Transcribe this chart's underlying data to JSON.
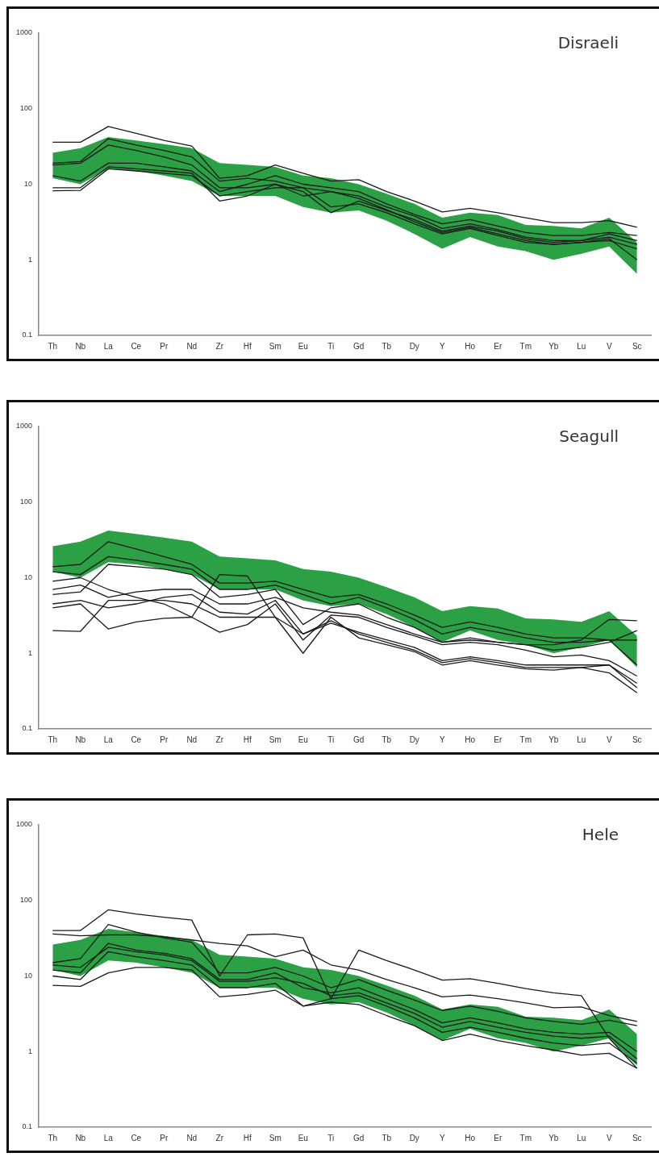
{
  "chart_data": [
    {
      "type": "line",
      "title": "Disraeli",
      "categories": [
        "Th",
        "Nb",
        "La",
        "Ce",
        "Pr",
        "Nd",
        "Zr",
        "Hf",
        "Sm",
        "Eu",
        "Ti",
        "Gd",
        "Tb",
        "Dy",
        "Y",
        "Ho",
        "Er",
        "Tm",
        "Yb",
        "Lu",
        "V",
        "Sc"
      ],
      "log": "y",
      "ylim": [
        0.1,
        1000
      ],
      "yticks": [
        0.1,
        1,
        10,
        100,
        1000
      ],
      "grid": false,
      "legend": false,
      "marker": "none",
      "line_style": "solid",
      "series": [
        {
          "color": "#2ca044",
          "values": [
            null,
            null,
            null,
            null,
            null,
            null,
            null,
            null,
            null,
            null,
            null,
            null,
            null,
            null,
            null,
            null,
            null,
            null,
            null,
            null,
            null,
            null
          ],
          "lower": [
            12,
            10,
            16,
            15,
            13,
            11,
            7,
            7,
            7,
            5,
            4.2,
            4.5,
            3.3,
            2.2,
            1.4,
            2,
            1.5,
            1.3,
            1,
            1.2,
            1.5,
            0.65
          ],
          "upper": [
            26,
            30,
            42,
            38,
            34,
            30,
            19,
            18,
            17,
            13,
            12,
            10,
            7.5,
            5.5,
            3.6,
            4.2,
            3.9,
            2.9,
            2.8,
            2.6,
            3.6,
            1.7
          ]
        },
        {
          "color": "#1a1a1a",
          "values": [
            36,
            36,
            58,
            47,
            38,
            32,
            12,
            13,
            18,
            14,
            11,
            11.5,
            8,
            6,
            4.3,
            4.8,
            4.2,
            3.6,
            3.1,
            3.1,
            3.3,
            2.7
          ]
        },
        {
          "color": "#1a1a1a",
          "values": [
            19,
            20,
            40,
            33,
            28,
            23,
            11,
            12,
            11,
            9,
            8,
            7,
            5,
            3.8,
            2.6,
            3,
            2.5,
            2,
            1.8,
            1.8,
            2,
            1.6
          ]
        },
        {
          "color": "#1a1a1a",
          "values": [
            18,
            19,
            33,
            28,
            23,
            18,
            9,
            9,
            10,
            8,
            4.2,
            6,
            4.5,
            3.4,
            2.4,
            2.8,
            2.4,
            1.9,
            1.7,
            1.8,
            2.2,
            1.8
          ]
        },
        {
          "color": "#1a1a1a",
          "values": [
            9,
            9,
            17,
            16,
            15,
            14,
            6,
            7,
            10,
            7,
            8,
            6.5,
            4.6,
            3.2,
            2.3,
            2.7,
            2.2,
            1.8,
            1.6,
            1.7,
            1.9,
            1
          ]
        },
        {
          "color": "#1a1a1a",
          "values": [
            8.2,
            8.3,
            16,
            15,
            14,
            13,
            7,
            8,
            9,
            9,
            5,
            5.5,
            4.2,
            3,
            2.2,
            2.6,
            2.1,
            1.7,
            1.6,
            1.7,
            1.8,
            1.4
          ]
        },
        {
          "color": "#1a1a1a",
          "values": [
            13,
            11,
            19,
            19,
            17,
            15,
            8,
            10,
            13,
            10,
            9,
            8,
            5.5,
            4,
            3,
            3.4,
            2.8,
            2.3,
            2.1,
            2.1,
            2.3,
            2.1
          ]
        }
      ]
    },
    {
      "type": "line",
      "title": "Seagull",
      "categories": [
        "Th",
        "Nb",
        "La",
        "Ce",
        "Pr",
        "Nd",
        "Zr",
        "Hf",
        "Sm",
        "Eu",
        "Ti",
        "Gd",
        "Tb",
        "Dy",
        "Y",
        "Ho",
        "Er",
        "Tm",
        "Yb",
        "Lu",
        "V",
        "Sc"
      ],
      "log": "y",
      "ylim": [
        0.1,
        1000
      ],
      "yticks": [
        0.1,
        1,
        10,
        100,
        1000
      ],
      "grid": false,
      "legend": false,
      "marker": "none",
      "line_style": "solid",
      "series": [
        {
          "color": "#2ca044",
          "values": [
            null,
            null,
            null,
            null,
            null,
            null,
            null,
            null,
            null,
            null,
            null,
            null,
            null,
            null,
            null,
            null,
            null,
            null,
            null,
            null,
            null,
            null
          ],
          "lower": [
            12,
            10,
            16,
            15,
            13,
            11,
            7,
            7,
            7,
            5,
            4.2,
            4.5,
            3.3,
            2.2,
            1.4,
            2,
            1.5,
            1.3,
            1,
            1.2,
            1.5,
            0.65
          ],
          "upper": [
            26,
            30,
            42,
            38,
            34,
            30,
            19,
            18,
            17,
            13,
            12,
            10,
            7.5,
            5.5,
            3.6,
            4.2,
            3.9,
            2.9,
            2.8,
            2.6,
            3.6,
            1.7
          ]
        },
        {
          "color": "#1a1a1a",
          "values": [
            14,
            15,
            30,
            24,
            19,
            15,
            8.5,
            8.5,
            9,
            7,
            5.5,
            6,
            4.5,
            3.2,
            2.2,
            2.6,
            2.2,
            1.8,
            1.6,
            1.6,
            1.5,
            1.5
          ]
        },
        {
          "color": "#1a1a1a",
          "values": [
            12,
            11,
            19,
            17,
            15,
            13,
            7,
            7,
            8,
            6,
            4.5,
            5.5,
            4,
            2.8,
            1.8,
            2.2,
            1.9,
            1.6,
            1.4,
            1.4,
            1.5,
            0.7
          ]
        },
        {
          "color": "#1a1a1a",
          "values": [
            2,
            1.95,
            5,
            5,
            5,
            4.5,
            3,
            3,
            3,
            1.8,
            2.7,
            1.8,
            1.4,
            1.1,
            0.75,
            0.85,
            0.75,
            0.65,
            0.65,
            0.65,
            0.7,
            0.35
          ]
        },
        {
          "color": "#1a1a1a",
          "values": [
            9,
            10,
            7,
            5.5,
            4.5,
            3,
            11,
            10.5,
            3,
            1,
            3,
            1.6,
            1.3,
            1.05,
            0.7,
            0.8,
            0.7,
            0.62,
            0.6,
            0.65,
            0.55,
            0.3
          ]
        },
        {
          "color": "#1a1a1a",
          "values": [
            4,
            4.5,
            2.1,
            2.6,
            2.9,
            3,
            1.9,
            2.4,
            4.5,
            1.5,
            3.2,
            3,
            2.2,
            1.7,
            1.3,
            1.4,
            1.3,
            1.1,
            0.9,
            0.95,
            0.8,
            0.5
          ]
        },
        {
          "color": "#1a1a1a",
          "values": [
            6,
            6.5,
            15,
            14,
            13,
            11,
            5.5,
            6,
            7,
            2.4,
            4,
            4.5,
            3,
            2.2,
            1.4,
            1.6,
            1.4,
            1.3,
            1.1,
            1.2,
            1.4,
            2
          ]
        },
        {
          "color": "#1a1a1a",
          "values": [
            4.5,
            5,
            4,
            4.5,
            5.5,
            6,
            3.5,
            3.3,
            5,
            1.8,
            2.5,
            1.9,
            1.5,
            1.2,
            0.8,
            0.9,
            0.8,
            0.7,
            0.7,
            0.7,
            0.7,
            0.4
          ]
        },
        {
          "color": "#1a1a1a",
          "values": [
            7,
            8,
            5.5,
            6.5,
            7,
            7,
            4.5,
            4.5,
            5.5,
            4,
            3.5,
            3.2,
            2.4,
            1.8,
            1.4,
            1.5,
            1.4,
            1.3,
            1.3,
            1.5,
            2.8,
            2.7
          ]
        }
      ]
    },
    {
      "type": "line",
      "title": "Hele",
      "categories": [
        "Th",
        "Nb",
        "La",
        "Ce",
        "Pr",
        "Nd",
        "Zr",
        "Hf",
        "Sm",
        "Eu",
        "Ti",
        "Gd",
        "Tb",
        "Dy",
        "Y",
        "Ho",
        "Er",
        "Tm",
        "Yb",
        "Lu",
        "V",
        "Sc"
      ],
      "log": "y",
      "ylim": [
        0.1,
        1000
      ],
      "yticks": [
        0.1,
        1,
        10,
        100,
        1000
      ],
      "grid": false,
      "legend": false,
      "marker": "none",
      "line_style": "solid",
      "series": [
        {
          "color": "#2ca044",
          "values": [
            null,
            null,
            null,
            null,
            null,
            null,
            null,
            null,
            null,
            null,
            null,
            null,
            null,
            null,
            null,
            null,
            null,
            null,
            null,
            null,
            null,
            null
          ],
          "lower": [
            12,
            10,
            16,
            15,
            13,
            11,
            7,
            7,
            7,
            5,
            4.2,
            4.5,
            3.3,
            2.2,
            1.4,
            2,
            1.5,
            1.3,
            1,
            1.2,
            1.5,
            0.65
          ],
          "upper": [
            26,
            30,
            42,
            38,
            34,
            30,
            19,
            18,
            17,
            13,
            12,
            10,
            7.5,
            5.5,
            3.6,
            4.2,
            3.9,
            2.9,
            2.8,
            2.6,
            3.6,
            1.7
          ]
        },
        {
          "color": "#1a1a1a",
          "values": [
            40,
            40,
            75,
            66,
            60,
            55,
            10,
            35,
            36,
            32,
            5,
            22,
            16,
            12,
            8.8,
            9.2,
            8,
            6.8,
            6,
            5.5,
            1.5,
            0.6
          ]
        },
        {
          "color": "#1a1a1a",
          "values": [
            36,
            34,
            35,
            35,
            33,
            30,
            27,
            25,
            18,
            22,
            14,
            12,
            9,
            7,
            5.3,
            5.6,
            5,
            4.4,
            3.8,
            3.9,
            3,
            2.5
          ]
        },
        {
          "color": "#1a1a1a",
          "values": [
            15,
            17,
            48,
            38,
            32,
            28,
            11,
            11,
            13,
            10,
            7,
            9,
            6.5,
            4.8,
            3.5,
            4,
            3.4,
            2.8,
            2.5,
            2.3,
            2.6,
            2.2
          ]
        },
        {
          "color": "#1a1a1a",
          "values": [
            12,
            11,
            27,
            22,
            20,
            17,
            9,
            9,
            11,
            7,
            6,
            7,
            5,
            3.6,
            2.4,
            2.8,
            2.4,
            2,
            1.8,
            1.7,
            1.8,
            1
          ]
        },
        {
          "color": "#1a1a1a",
          "values": [
            7.5,
            7.3,
            11,
            13,
            13,
            12,
            5.3,
            5.7,
            6.5,
            4,
            4.5,
            4.2,
            3,
            2.2,
            1.4,
            1.7,
            1.4,
            1.2,
            1.05,
            0.9,
            0.95,
            0.6
          ]
        },
        {
          "color": "#1a1a1a",
          "values": [
            10,
            9,
            21,
            18,
            16,
            14,
            7,
            7,
            8,
            4,
            5,
            5.5,
            4,
            2.8,
            1.8,
            2.1,
            1.8,
            1.5,
            1.3,
            1.2,
            1.3,
            0.7
          ]
        },
        {
          "color": "#1a1a1a",
          "values": [
            14,
            13,
            24,
            21,
            19,
            16,
            8.5,
            8.5,
            9.5,
            8,
            5.5,
            6,
            4.4,
            3.2,
            2.1,
            2.5,
            2.1,
            1.8,
            1.6,
            1.5,
            1.6,
            0.8
          ]
        }
      ]
    }
  ]
}
